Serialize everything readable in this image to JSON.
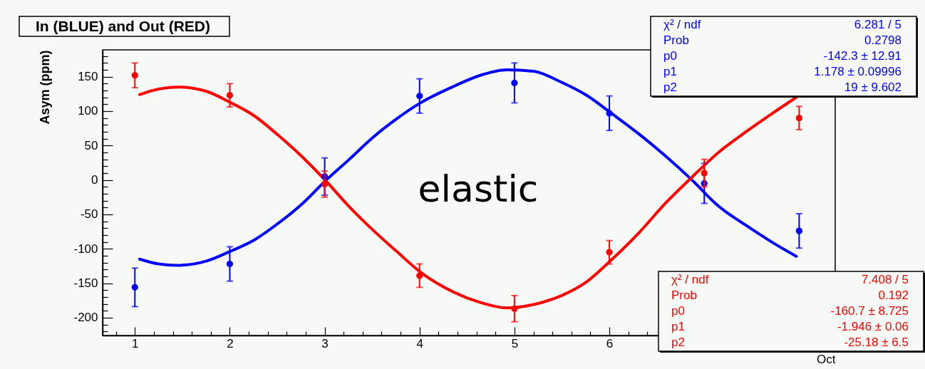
{
  "chart_data": {
    "type": "scatter",
    "title": "In (BLUE) and Out (RED)",
    "xlabel": "Oct",
    "ylabel": "Asym (ppm)",
    "annotations": [
      "elastic",
      "χ² / ndf",
      "6.281 / 5",
      "Prob",
      "0.2798",
      "p0",
      "-142.3 ± 12.91",
      "p1",
      "1.178 ± 0.09996",
      "p2",
      "19 ± 9.602",
      "χ² / ndf",
      "7.408 / 5",
      "Prob",
      "0.192",
      "p0",
      "-160.7 ± 8.725",
      "p1",
      "-1.946 ±  0.06",
      "p2",
      "-25.18 ±   6.5"
    ],
    "xlim": [
      0.66,
      8.38
    ],
    "xticks": [
      {
        "value": 0.8,
        "label": null
      },
      1,
      {
        "value": 1.2,
        "label": null
      },
      {
        "value": 1.4,
        "label": null
      },
      {
        "value": 1.6,
        "label": null
      },
      {
        "value": 1.8,
        "label": null
      },
      2,
      {
        "value": 2.2,
        "label": null
      },
      {
        "value": 2.4,
        "label": null
      },
      {
        "value": 2.6,
        "label": null
      },
      {
        "value": 2.8,
        "label": null
      },
      3,
      {
        "value": 3.2,
        "label": null
      },
      {
        "value": 3.4,
        "label": null
      },
      {
        "value": 3.6,
        "label": null
      },
      {
        "value": 3.8,
        "label": null
      },
      4,
      {
        "value": 4.2,
        "label": null
      },
      {
        "value": 4.4,
        "label": null
      },
      {
        "value": 4.6,
        "label": null
      },
      {
        "value": 4.8,
        "label": null
      },
      5,
      {
        "value": 5.2,
        "label": null
      },
      {
        "value": 5.4,
        "label": null
      },
      {
        "value": 5.6,
        "label": null
      },
      {
        "value": 5.8,
        "label": null
      },
      6,
      {
        "value": 6.2,
        "label": null
      },
      {
        "value": 6.4,
        "label": null
      }
    ],
    "ylim": [
      -226,
      189
    ],
    "yticks": [
      {
        "value": -220,
        "label": null
      },
      {
        "value": -210,
        "label": null
      },
      -200,
      {
        "value": -190,
        "label": null
      },
      {
        "value": -180,
        "label": null
      },
      {
        "value": -170,
        "label": null
      },
      {
        "value": -160,
        "label": null
      },
      -150,
      {
        "value": -140,
        "label": null
      },
      {
        "value": -130,
        "label": null
      },
      {
        "value": -120,
        "label": null
      },
      {
        "value": -110,
        "label": null
      },
      -100,
      {
        "value": -90,
        "label": null
      },
      {
        "value": -80,
        "label": null
      },
      {
        "value": -70,
        "label": null
      },
      {
        "value": -60,
        "label": null
      },
      -50,
      {
        "value": -40,
        "label": null
      },
      {
        "value": -30,
        "label": null
      },
      {
        "value": -20,
        "label": null
      },
      {
        "value": -10,
        "label": null
      },
      0,
      {
        "value": 10,
        "label": null
      },
      {
        "value": 20,
        "label": null
      },
      {
        "value": 30,
        "label": null
      },
      {
        "value": 40,
        "label": null
      },
      50,
      {
        "value": 60,
        "label": null
      },
      {
        "value": 70,
        "label": null
      },
      {
        "value": 80,
        "label": null
      },
      {
        "value": 90,
        "label": null
      },
      100,
      {
        "value": 110,
        "label": null
      },
      {
        "value": 120,
        "label": null
      },
      {
        "value": 130,
        "label": null
      },
      {
        "value": 140,
        "label": null
      },
      150,
      {
        "value": 160,
        "label": null
      },
      {
        "value": 170,
        "label": null
      },
      {
        "value": 180,
        "label": null
      }
    ],
    "series": [
      {
        "type": "line",
        "color": "#0000ff",
        "line_style": "solid",
        "marker": "none",
        "x": [
          1.05,
          1.25,
          1.45,
          1.75,
          2.0,
          2.26,
          2.51,
          2.76,
          3.01,
          3.26,
          3.51,
          3.76,
          4.01,
          4.36,
          4.64,
          4.92,
          5.2,
          5.48,
          5.76,
          6.03,
          6.31,
          6.59,
          6.87,
          7.15,
          7.43,
          7.71,
          7.97
        ],
        "values": [
          -115,
          -122,
          -124,
          -118,
          -104,
          -87,
          -63,
          -35,
          -1,
          30,
          62,
          89,
          112,
          136,
          152,
          160,
          158,
          143,
          123,
          96,
          67,
          35,
          0,
          -38,
          -65,
          -90,
          -111
        ]
      },
      {
        "type": "line",
        "color": "#ff0000",
        "line_style": "solid",
        "marker": "none",
        "x": [
          1.05,
          1.25,
          1.45,
          1.75,
          2.0,
          2.26,
          2.51,
          2.76,
          3.01,
          3.26,
          3.51,
          3.76,
          4.01,
          4.36,
          4.64,
          4.92,
          5.2,
          5.48,
          5.76,
          6.03,
          6.31,
          6.59,
          6.87,
          7.15,
          7.43,
          7.71,
          7.97
        ],
        "values": [
          124,
          132,
          135,
          129,
          113,
          93,
          65,
          34,
          -1,
          -39,
          -73,
          -104,
          -134,
          -163,
          -178,
          -186,
          -181,
          -169,
          -148,
          -115,
          -77,
          -34,
          4,
          40,
          69,
          96,
          120
        ]
      },
      {
        "color": "#0000ff",
        "marker": "circle",
        "x": [
          1,
          2,
          3,
          4,
          5,
          6,
          7,
          8
        ],
        "values": [
          -156,
          -122,
          5,
          122,
          141,
          97,
          -5,
          -74
        ],
        "errors": [
          28,
          25,
          27,
          25,
          29,
          25,
          29,
          25
        ]
      },
      {
        "color": "#ff0000",
        "marker": "circle",
        "x": [
          1,
          2,
          3,
          4,
          5,
          6,
          7,
          8
        ],
        "values": [
          152,
          123,
          -6,
          -139,
          -187,
          -105,
          10,
          90
        ],
        "errors": [
          18,
          17,
          19,
          17,
          19,
          17,
          20,
          17
        ]
      }
    ]
  }
}
